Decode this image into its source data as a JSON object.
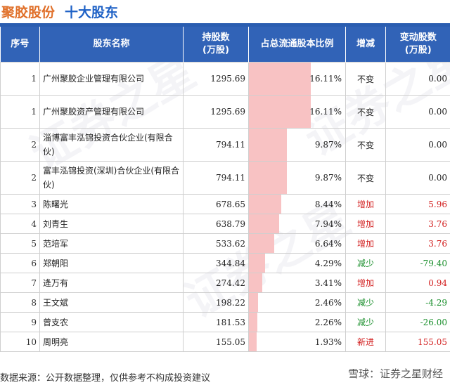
{
  "header": {
    "company": "聚胶股份",
    "subtitle": "十大股东"
  },
  "columns": [
    "序号",
    "股东名称",
    "持股数\n(万股)",
    "占总流通股本比例",
    "增减",
    "变动股数\n(万股)"
  ],
  "chart_data": {
    "type": "table",
    "title": "聚胶股份 十大股东",
    "rows": [
      {
        "rank": "1",
        "name": "广州聚胶企业管理有限公司",
        "shares": "1295.69",
        "ratio": 16.11,
        "ratio_label": "16.11%",
        "change": "不变",
        "delta": "0.00",
        "dir": "flat"
      },
      {
        "rank": "1",
        "name": "广州聚胶资产管理有限公司",
        "shares": "1295.69",
        "ratio": 16.11,
        "ratio_label": "16.11%",
        "change": "不变",
        "delta": "0.00",
        "dir": "flat"
      },
      {
        "rank": "2",
        "name": "淄博富丰泓锦投资合伙企业(有限合伙)",
        "shares": "794.11",
        "ratio": 9.87,
        "ratio_label": "9.87%",
        "change": "不变",
        "delta": "0.00",
        "dir": "flat"
      },
      {
        "rank": "2",
        "name": "富丰泓锦投资(深圳)合伙企业(有限合伙)",
        "shares": "794.11",
        "ratio": 9.87,
        "ratio_label": "9.87%",
        "change": "不变",
        "delta": "0.00",
        "dir": "flat"
      },
      {
        "rank": "3",
        "name": "陈曙光",
        "shares": "678.65",
        "ratio": 8.44,
        "ratio_label": "8.44%",
        "change": "增加",
        "delta": "5.96",
        "dir": "up"
      },
      {
        "rank": "4",
        "name": "刘青生",
        "shares": "638.79",
        "ratio": 7.94,
        "ratio_label": "7.94%",
        "change": "增加",
        "delta": "3.76",
        "dir": "up"
      },
      {
        "rank": "5",
        "name": "范培军",
        "shares": "533.62",
        "ratio": 6.64,
        "ratio_label": "6.64%",
        "change": "增加",
        "delta": "3.76",
        "dir": "up"
      },
      {
        "rank": "6",
        "name": "郑朝阳",
        "shares": "344.84",
        "ratio": 4.29,
        "ratio_label": "4.29%",
        "change": "减少",
        "delta": "-79.40",
        "dir": "down"
      },
      {
        "rank": "7",
        "name": "逄万有",
        "shares": "274.42",
        "ratio": 3.41,
        "ratio_label": "3.41%",
        "change": "增加",
        "delta": "0.94",
        "dir": "up"
      },
      {
        "rank": "8",
        "name": "王文斌",
        "shares": "198.22",
        "ratio": 2.46,
        "ratio_label": "2.46%",
        "change": "减少",
        "delta": "-4.29",
        "dir": "down"
      },
      {
        "rank": "9",
        "name": "曾支农",
        "shares": "181.53",
        "ratio": 2.26,
        "ratio_label": "2.26%",
        "change": "减少",
        "delta": "-26.00",
        "dir": "down"
      },
      {
        "rank": "10",
        "name": "周明亮",
        "shares": "155.05",
        "ratio": 1.93,
        "ratio_label": "1.93%",
        "change": "新进",
        "delta": "155.05",
        "dir": "up"
      }
    ]
  },
  "colors": {
    "header_bg": "#3163b7",
    "bar": "#f8c2c3",
    "up": "#d21d1d",
    "down": "#1a8f2c",
    "company_title": "#e0702a",
    "subtitle": "#1f62c6"
  },
  "footer": {
    "source": "数据来源：公开数据整理，仅供参考不构成投资建议",
    "logo": "雪球：证券之星财经"
  },
  "watermark": "证券之星"
}
